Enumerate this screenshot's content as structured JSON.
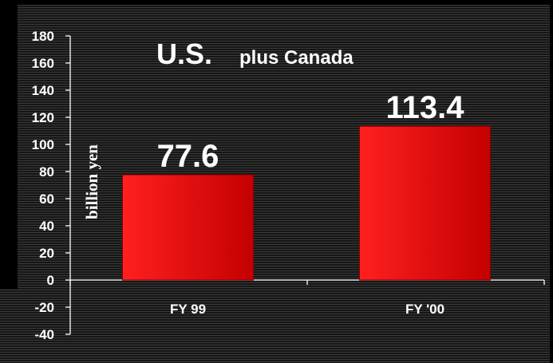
{
  "chart_data": {
    "type": "bar",
    "title_main": "U.S.",
    "title_sub": "plus Canada",
    "ylabel": "billion yen",
    "xlabel": "",
    "categories": [
      "FY 99",
      "FY '00"
    ],
    "values": [
      77.6,
      113.4
    ],
    "value_labels": [
      "77.6",
      "113.4"
    ],
    "ylim": [
      -40,
      180
    ],
    "yticks": [
      180,
      160,
      140,
      120,
      100,
      80,
      60,
      40,
      20,
      0,
      -20,
      -40
    ],
    "ytick_labels": [
      "180",
      "160",
      "140",
      "120",
      "100",
      "80",
      "60",
      "40",
      "20",
      "0",
      "-20",
      "-40"
    ],
    "grid": false,
    "legend": "none",
    "colors": {
      "bar_light": "#ff1a1a",
      "bar_dark": "#c80000",
      "axis": "#ffffff",
      "text": "#ffffff"
    }
  }
}
